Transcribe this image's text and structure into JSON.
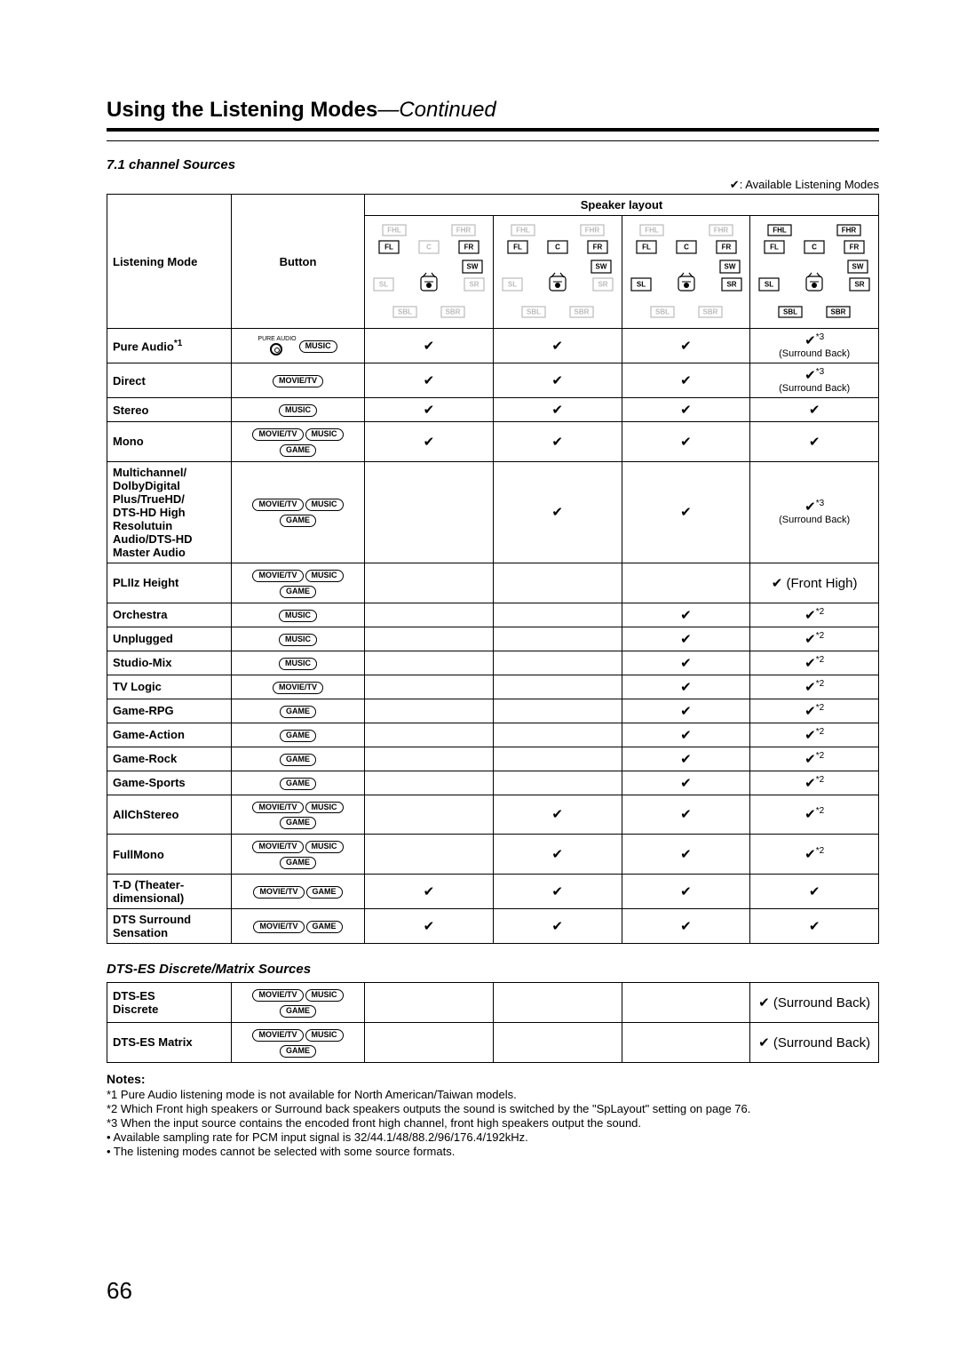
{
  "page": {
    "title_main": "Using the Listening Modes",
    "title_cont": "—Continued",
    "page_number": "66"
  },
  "section1": {
    "heading": "7.1 channel Sources",
    "avail_label": "✔: Available Listening Modes",
    "header": {
      "mode": "Listening Mode",
      "button": "Button",
      "layout": "Speaker layout"
    }
  },
  "section2": {
    "heading": "DTS-ES Discrete/Matrix Sources"
  },
  "buttons": {
    "pure_audio": "PURE AUDIO",
    "music": "MUSIC",
    "movie": "MOVIE/TV",
    "game": "GAME"
  },
  "checks": {
    "plain": "✔",
    "star2": "✔*2",
    "star3": "✔*3",
    "sb": "(Surround Back)",
    "fh": "✔ (Front High)",
    "sb_inline": "✔ (Surround Back)"
  },
  "modes71": [
    {
      "name": "Pure Audio*1",
      "btns": [
        "pa",
        "music"
      ],
      "c": [
        "plain",
        "plain",
        "plain",
        "star3_sb"
      ]
    },
    {
      "name": "Direct",
      "btns": [
        "movie"
      ],
      "c": [
        "plain",
        "plain",
        "plain",
        "star3_sb"
      ]
    },
    {
      "name": "Stereo",
      "btns": [
        "music"
      ],
      "c": [
        "plain",
        "plain",
        "plain",
        "plain"
      ]
    },
    {
      "name": "Mono",
      "btns": [
        "movie",
        "music",
        "game"
      ],
      "c": [
        "plain",
        "plain",
        "plain",
        "plain"
      ]
    },
    {
      "name": "Multichannel/\nDolbyDigital\nPlus/TrueHD/\nDTS-HD High\nResolutuin\nAudio/DTS-HD\nMaster Audio",
      "btns": [
        "movie",
        "music",
        "game"
      ],
      "c": [
        "",
        "plain",
        "plain",
        "star3_sb"
      ]
    },
    {
      "name": "PLIIz Height",
      "btns": [
        "movie",
        "music",
        "game"
      ],
      "c": [
        "",
        "",
        "",
        "fh"
      ]
    },
    {
      "name": "Orchestra",
      "btns": [
        "music"
      ],
      "c": [
        "",
        "",
        "plain",
        "star2"
      ]
    },
    {
      "name": "Unplugged",
      "btns": [
        "music"
      ],
      "c": [
        "",
        "",
        "plain",
        "star2"
      ]
    },
    {
      "name": "Studio-Mix",
      "btns": [
        "music"
      ],
      "c": [
        "",
        "",
        "plain",
        "star2"
      ]
    },
    {
      "name": "TV Logic",
      "btns": [
        "movie"
      ],
      "c": [
        "",
        "",
        "plain",
        "star2"
      ]
    },
    {
      "name": "Game-RPG",
      "btns": [
        "game"
      ],
      "c": [
        "",
        "",
        "plain",
        "star2"
      ]
    },
    {
      "name": "Game-Action",
      "btns": [
        "game"
      ],
      "c": [
        "",
        "",
        "plain",
        "star2"
      ]
    },
    {
      "name": "Game-Rock",
      "btns": [
        "game"
      ],
      "c": [
        "",
        "",
        "plain",
        "star2"
      ]
    },
    {
      "name": "Game-Sports",
      "btns": [
        "game"
      ],
      "c": [
        "",
        "",
        "plain",
        "star2"
      ]
    },
    {
      "name": "AllChStereo",
      "btns": [
        "movie",
        "music",
        "game"
      ],
      "c": [
        "",
        "plain",
        "plain",
        "star2"
      ]
    },
    {
      "name": "FullMono",
      "btns": [
        "movie",
        "music",
        "game"
      ],
      "c": [
        "",
        "plain",
        "plain",
        "star2"
      ]
    },
    {
      "name": "T-D (Theater-\ndimensional)",
      "btns": [
        "movie",
        "game"
      ],
      "c": [
        "plain",
        "plain",
        "plain",
        "plain"
      ]
    },
    {
      "name": "DTS Surround\nSensation",
      "btns": [
        "movie",
        "game"
      ],
      "c": [
        "plain",
        "plain",
        "plain",
        "plain"
      ]
    }
  ],
  "modesES": [
    {
      "name": "DTS-ES\nDiscrete",
      "btns": [
        "movie",
        "music",
        "game"
      ],
      "c": [
        "",
        "",
        "",
        "sb_inline"
      ]
    },
    {
      "name": "DTS-ES Matrix",
      "btns": [
        "movie",
        "music",
        "game"
      ],
      "c": [
        "",
        "",
        "",
        "sb_inline"
      ]
    }
  ],
  "layouts": [
    {
      "FHL": 0,
      "FHR": 0,
      "FL": 1,
      "C": 0,
      "FR": 1,
      "SW": 1,
      "SL": 0,
      "SR": 0,
      "SBL": 0,
      "SBR": 0
    },
    {
      "FHL": 0,
      "FHR": 0,
      "FL": 1,
      "C": 1,
      "FR": 1,
      "SW": 1,
      "SL": 0,
      "SR": 0,
      "SBL": 0,
      "SBR": 0
    },
    {
      "FHL": 0,
      "FHR": 0,
      "FL": 1,
      "C": 1,
      "FR": 1,
      "SW": 1,
      "SL": 1,
      "SR": 1,
      "SBL": 0,
      "SBR": 0
    },
    {
      "FHL": 1,
      "FHR": 1,
      "FL": 1,
      "C": 1,
      "FR": 1,
      "SW": 1,
      "SL": 1,
      "SR": 1,
      "SBL": 1,
      "SBR": 1
    }
  ],
  "spk_labels": {
    "FHL": "FHL",
    "FHR": "FHR",
    "FL": "FL",
    "C": "C",
    "FR": "FR",
    "SW": "SW",
    "SL": "SL",
    "SR": "SR",
    "SBL": "SBL",
    "SBR": "SBR"
  },
  "notes": {
    "heading": "Notes:",
    "items": [
      "*1  Pure Audio listening mode is not available for North American/Taiwan models.",
      "*2  Which Front high speakers or Surround back speakers outputs the sound is switched by the \"SpLayout\" setting on page 76.",
      "*3  When the input source contains the encoded front high channel, front high speakers output the sound.",
      "•  Available sampling rate for PCM input signal is 32/44.1/48/88.2/96/176.4/192kHz.",
      "•  The listening modes cannot be selected with some source formats."
    ]
  }
}
